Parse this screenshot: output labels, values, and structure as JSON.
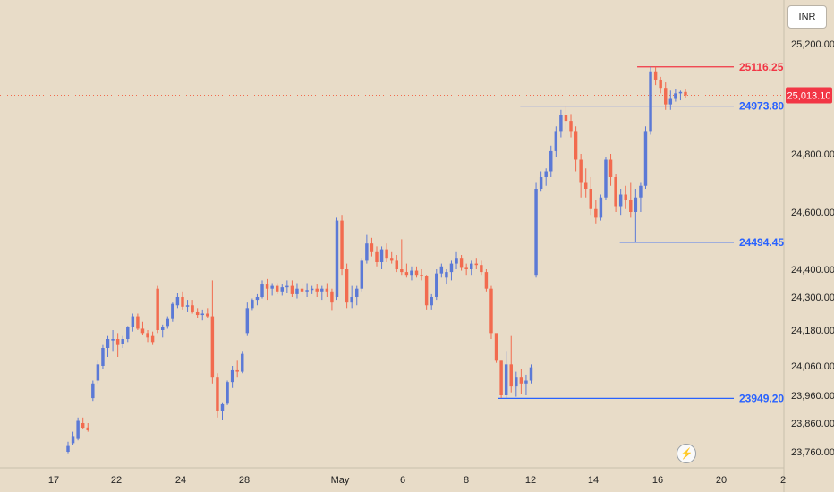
{
  "currency_label": "INR",
  "flash_icon": "lightning-icon",
  "colors": {
    "up": "#5b79d6",
    "down": "#f26b4f",
    "bg": "#e8dcc8",
    "level_blue": "#2962ff",
    "level_red": "#f23645"
  },
  "chart_data": {
    "type": "candlestick",
    "y_axis_ticks": [
      "25,200.00",
      "24,800.00",
      "24,600.00",
      "24,400.00",
      "24,300.00",
      "24,180.00",
      "24,060.00",
      "23,960.00",
      "23,860.00",
      "23,760.00"
    ],
    "x_axis_ticks": [
      "17",
      "22",
      "24",
      "28",
      "May",
      "6",
      "8",
      "12",
      "14",
      "16",
      "20",
      "2"
    ],
    "current_price": {
      "value": 25013.1,
      "label": "25,013.10"
    },
    "levels": [
      {
        "label": "25116.25",
        "value": 25116.25,
        "color": "red"
      },
      {
        "label": "24973.80",
        "value": 24973.8,
        "color": "blue"
      },
      {
        "label": "24494.45",
        "value": 24494.45,
        "color": "blue"
      },
      {
        "label": "23949.20",
        "value": 23949.2,
        "color": "blue"
      }
    ],
    "candles": [
      [
        23760,
        23795,
        23755,
        23780
      ],
      [
        23790,
        23830,
        23785,
        23815
      ],
      [
        23805,
        23880,
        23800,
        23868
      ],
      [
        23860,
        23880,
        23838,
        23843
      ],
      [
        23845,
        23860,
        23830,
        23835
      ],
      [
        23950,
        24010,
        23940,
        24000
      ],
      [
        24010,
        24080,
        24000,
        24065
      ],
      [
        24060,
        24130,
        24050,
        24120
      ],
      [
        24120,
        24160,
        24090,
        24150
      ],
      [
        24145,
        24180,
        24110,
        24150
      ],
      [
        24150,
        24170,
        24090,
        24130
      ],
      [
        24135,
        24160,
        24120,
        24150
      ],
      [
        24150,
        24195,
        24140,
        24190
      ],
      [
        24190,
        24240,
        24175,
        24230
      ],
      [
        24230,
        24240,
        24180,
        24185
      ],
      [
        24185,
        24210,
        24165,
        24170
      ],
      [
        24170,
        24180,
        24140,
        24155
      ],
      [
        24160,
        24175,
        24130,
        24140
      ],
      [
        24330,
        24340,
        24170,
        24180
      ],
      [
        24180,
        24200,
        24155,
        24190
      ],
      [
        24195,
        24230,
        24185,
        24220
      ],
      [
        24220,
        24280,
        24210,
        24275
      ],
      [
        24270,
        24315,
        24260,
        24300
      ],
      [
        24300,
        24320,
        24255,
        24265
      ],
      [
        24265,
        24290,
        24245,
        24270
      ],
      [
        24270,
        24290,
        24240,
        24245
      ],
      [
        24245,
        24260,
        24225,
        24235
      ],
      [
        24235,
        24255,
        24215,
        24240
      ],
      [
        24240,
        24260,
        24225,
        24230
      ],
      [
        24230,
        24360,
        24000,
        24020
      ],
      [
        24020,
        24035,
        23880,
        23905
      ],
      [
        23905,
        23935,
        23870,
        23928
      ],
      [
        23930,
        24010,
        23925,
        24005
      ],
      [
        24005,
        24060,
        23985,
        24045
      ],
      [
        24045,
        24080,
        24020,
        24040
      ],
      [
        24040,
        24110,
        24035,
        24100
      ],
      [
        24170,
        24280,
        24160,
        24260
      ],
      [
        24260,
        24295,
        24250,
        24290
      ],
      [
        24290,
        24310,
        24270,
        24300
      ],
      [
        24300,
        24360,
        24295,
        24345
      ],
      [
        24345,
        24365,
        24290,
        24330
      ],
      [
        24330,
        24350,
        24305,
        24340
      ],
      [
        24340,
        24350,
        24310,
        24320
      ],
      [
        24320,
        24345,
        24305,
        24335
      ],
      [
        24335,
        24360,
        24315,
        24340
      ],
      [
        24340,
        24360,
        24300,
        24310
      ],
      [
        24310,
        24350,
        24295,
        24330
      ],
      [
        24330,
        24345,
        24305,
        24320
      ],
      [
        24320,
        24350,
        24300,
        24325
      ],
      [
        24325,
        24340,
        24310,
        24330
      ],
      [
        24330,
        24345,
        24300,
        24320
      ],
      [
        24320,
        24340,
        24290,
        24330
      ],
      [
        24330,
        24350,
        24300,
        24320
      ],
      [
        24320,
        24330,
        24250,
        24280
      ],
      [
        24300,
        24580,
        24290,
        24570
      ],
      [
        24570,
        24590,
        24380,
        24400
      ],
      [
        24400,
        24420,
        24260,
        24280
      ],
      [
        24280,
        24340,
        24260,
        24300
      ],
      [
        24300,
        24340,
        24270,
        24330
      ],
      [
        24330,
        24440,
        24320,
        24430
      ],
      [
        24430,
        24520,
        24420,
        24490
      ],
      [
        24490,
        24510,
        24445,
        24460
      ],
      [
        24460,
        24480,
        24410,
        24425
      ],
      [
        24425,
        24480,
        24400,
        24470
      ],
      [
        24470,
        24490,
        24425,
        24440
      ],
      [
        24440,
        24460,
        24420,
        24430
      ],
      [
        24430,
        24450,
        24390,
        24400
      ],
      [
        24400,
        24505,
        24380,
        24390
      ],
      [
        24390,
        24420,
        24370,
        24380
      ],
      [
        24380,
        24410,
        24360,
        24395
      ],
      [
        24395,
        24410,
        24370,
        24380
      ],
      [
        24380,
        24400,
        24360,
        24375
      ],
      [
        24375,
        24380,
        24255,
        24270
      ],
      [
        24270,
        24310,
        24255,
        24300
      ],
      [
        24300,
        24400,
        24290,
        24385
      ],
      [
        24385,
        24420,
        24370,
        24410
      ],
      [
        24370,
        24400,
        24345,
        24390
      ],
      [
        24390,
        24430,
        24360,
        24420
      ],
      [
        24420,
        24460,
        24400,
        24440
      ],
      [
        24440,
        24450,
        24395,
        24405
      ],
      [
        24405,
        24420,
        24380,
        24400
      ],
      [
        24400,
        24430,
        24380,
        24420
      ],
      [
        24420,
        24440,
        24400,
        24415
      ],
      [
        24415,
        24430,
        24380,
        24390
      ],
      [
        24390,
        24400,
        24320,
        24330
      ],
      [
        24330,
        24340,
        24150,
        24170
      ],
      [
        24170,
        24160,
        24070,
        24080
      ],
      [
        24080,
        24080,
        23950,
        23960
      ],
      [
        23960,
        24110,
        23950,
        24065
      ],
      [
        24065,
        24160,
        23970,
        23990
      ],
      [
        23990,
        24040,
        23955,
        24020
      ],
      [
        24020,
        24050,
        23965,
        24000
      ],
      [
        24000,
        24030,
        23960,
        24010
      ],
      [
        24010,
        24065,
        24000,
        24055
      ],
      [
        24380,
        24700,
        24370,
        24680
      ],
      [
        24680,
        24740,
        24670,
        24720
      ],
      [
        24720,
        24750,
        24690,
        24740
      ],
      [
        24740,
        24830,
        24720,
        24810
      ],
      [
        24810,
        24900,
        24790,
        24880
      ],
      [
        24880,
        24960,
        24860,
        24940
      ],
      [
        24940,
        24973.8,
        24890,
        24920
      ],
      [
        24920,
        24945,
        24860,
        24880
      ],
      [
        24880,
        24900,
        24740,
        24780
      ],
      [
        24780,
        24800,
        24650,
        24700
      ],
      [
        24700,
        24750,
        24650,
        24680
      ],
      [
        24680,
        24720,
        24590,
        24610
      ],
      [
        24610,
        24640,
        24560,
        24580
      ],
      [
        24580,
        24660,
        24570,
        24650
      ],
      [
        24650,
        24790,
        24640,
        24780
      ],
      [
        24780,
        24800,
        24690,
        24720
      ],
      [
        24720,
        24730,
        24600,
        24620
      ],
      [
        24620,
        24680,
        24590,
        24660
      ],
      [
        24660,
        24690,
        24610,
        24640
      ],
      [
        24640,
        24700,
        24580,
        24600
      ],
      [
        24600,
        24680,
        24494.45,
        24650
      ],
      [
        24650,
        24700,
        24600,
        24690
      ],
      [
        24690,
        24900,
        24680,
        24880
      ],
      [
        24880,
        25116.25,
        24870,
        25100
      ],
      [
        25100,
        25116,
        25050,
        25070
      ],
      [
        25070,
        25080,
        25020,
        25040
      ],
      [
        25040,
        25060,
        24960,
        24980
      ],
      [
        24980,
        25030,
        24960,
        25000
      ],
      [
        25000,
        25035,
        24990,
        25020
      ],
      [
        25020,
        25030,
        24995,
        25025
      ],
      [
        25025,
        25035,
        25005,
        25013.1
      ]
    ]
  }
}
